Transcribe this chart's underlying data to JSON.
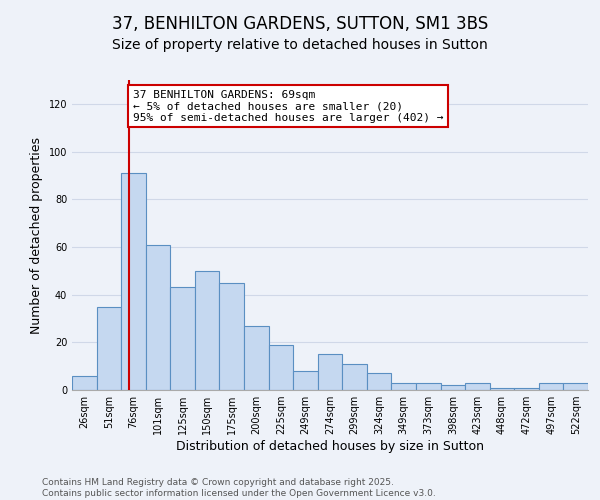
{
  "title": "37, BENHILTON GARDENS, SUTTON, SM1 3BS",
  "subtitle": "Size of property relative to detached houses in Sutton",
  "xlabel": "Distribution of detached houses by size in Sutton",
  "ylabel": "Number of detached properties",
  "categories": [
    "26sqm",
    "51sqm",
    "76sqm",
    "101sqm",
    "125sqm",
    "150sqm",
    "175sqm",
    "200sqm",
    "225sqm",
    "249sqm",
    "274sqm",
    "299sqm",
    "324sqm",
    "349sqm",
    "373sqm",
    "398sqm",
    "423sqm",
    "448sqm",
    "472sqm",
    "497sqm",
    "522sqm"
  ],
  "values": [
    6,
    35,
    91,
    61,
    43,
    50,
    45,
    27,
    19,
    8,
    15,
    11,
    7,
    3,
    3,
    2,
    3,
    1,
    1,
    3,
    3
  ],
  "bar_color": "#c5d8f0",
  "bar_edge_color": "#5a8fc2",
  "vline_color": "#cc0000",
  "vline_pos": 1.82,
  "annotation_text": "37 BENHILTON GARDENS: 69sqm\n← 5% of detached houses are smaller (20)\n95% of semi-detached houses are larger (402) →",
  "annotation_box_color": "white",
  "annotation_box_edge": "#cc0000",
  "ylim": [
    0,
    130
  ],
  "yticks": [
    0,
    20,
    40,
    60,
    80,
    100,
    120
  ],
  "grid_color": "#d0d8e8",
  "background_color": "#eef2f9",
  "footer": "Contains HM Land Registry data © Crown copyright and database right 2025.\nContains public sector information licensed under the Open Government Licence v3.0.",
  "title_fontsize": 12,
  "subtitle_fontsize": 10,
  "axis_label_fontsize": 9,
  "tick_fontsize": 7,
  "annotation_fontsize": 8,
  "footer_fontsize": 6.5
}
